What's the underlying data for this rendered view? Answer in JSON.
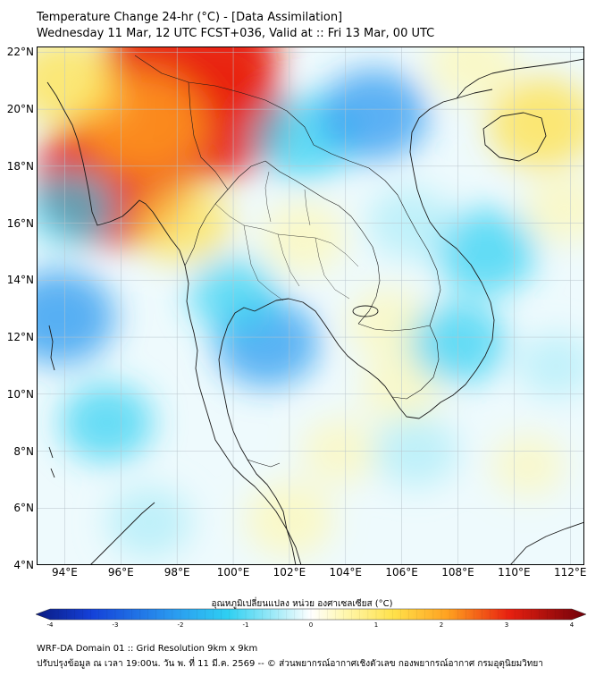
{
  "title_line1": "Temperature Change 24-hr (°C) - [Data Assimilation]",
  "title_line2": "Wednesday 11 Mar, 12 UTC FCST+036, Valid at :: Fri 13 Mar, 00 UTC",
  "lat_labels": [
    "22°N",
    "20°N",
    "18°N",
    "16°N",
    "14°N",
    "12°N",
    "10°N",
    "8°N",
    "6°N",
    "4°N"
  ],
  "lon_labels": [
    "94°E",
    "96°E",
    "98°E",
    "100°E",
    "102°E",
    "104°E",
    "106°E",
    "108°E",
    "110°E",
    "112°E"
  ],
  "map_extent": {
    "lon_min": 93.0,
    "lon_max": 112.5,
    "lat_min": 4.0,
    "lat_max": 22.2
  },
  "colorbar": {
    "title": "อุณหภูมิเปลี่ยนแปลง หน่วย องศาเซลเซียส (°C)",
    "ticks": [
      "-4",
      "-3",
      "-2",
      "-1",
      "0",
      "1",
      "2",
      "3",
      "4"
    ],
    "min": -4,
    "max": 4,
    "colors": {
      "extreme_cold": "#0a1a80",
      "deep_blue": "#1440d8",
      "mid_blue": "#2a9af0",
      "light_blue": "#2fd0f2",
      "pale_blue": "#a9ecf8",
      "neutral": "#ffffff",
      "pale_yellow": "#fff7b0",
      "yellow": "#ffe14a",
      "orange": "#ffa020",
      "red": "#e82010",
      "extreme_warm": "#70000a"
    }
  },
  "anomaly_field": [
    {
      "name": "myanmar-north-warm",
      "lon": 98.5,
      "lat": 21.8,
      "value": 3.0
    },
    {
      "name": "myanmar-north-warm-2",
      "lon": 99.2,
      "lat": 19.8,
      "value": 2.5
    },
    {
      "name": "myanmar-west-warm",
      "lon": 95.7,
      "lat": 17.5,
      "value": 2.6
    },
    {
      "name": "myanmar-central-warm",
      "lon": 96.8,
      "lat": 19.5,
      "value": 1.8
    },
    {
      "name": "bay-bengal-north-warm",
      "lon": 94.0,
      "lat": 21.0,
      "value": 1.3
    },
    {
      "name": "myanmar-south-warm",
      "lon": 98.2,
      "lat": 16.0,
      "value": 1.1
    },
    {
      "name": "gulf-tonkin-warm",
      "lon": 111.0,
      "lat": 19.5,
      "value": 1.4
    },
    {
      "name": "scs-north-warm",
      "lon": 108.5,
      "lat": 21.6,
      "value": 0.9
    },
    {
      "name": "scs-east-warm",
      "lon": 111.8,
      "lat": 16.5,
      "value": 0.7
    },
    {
      "name": "isaan-warm",
      "lon": 102.5,
      "lat": 15.5,
      "value": 0.8
    },
    {
      "name": "cambodia-warm",
      "lon": 105.5,
      "lat": 12.5,
      "value": 0.7
    },
    {
      "name": "mekong-delta-warm",
      "lon": 106.0,
      "lat": 10.2,
      "value": 0.7
    },
    {
      "name": "south-warm",
      "lon": 102.0,
      "lat": 5.6,
      "value": 0.9
    },
    {
      "name": "gulf-south-warm",
      "lon": 103.8,
      "lat": 8.0,
      "value": 0.6
    },
    {
      "name": "scs-southeast-warm",
      "lon": 110.5,
      "lat": 7.5,
      "value": 0.5
    },
    {
      "name": "laos-cold",
      "lon": 102.5,
      "lat": 19.0,
      "value": -1.2
    },
    {
      "name": "vietnam-north-cold",
      "lon": 105.0,
      "lat": 19.8,
      "value": -1.4
    },
    {
      "name": "scs-cold",
      "lon": 109.0,
      "lat": 15.0,
      "value": -1.2
    },
    {
      "name": "scs-south-cold",
      "lon": 108.0,
      "lat": 11.8,
      "value": -1.1
    },
    {
      "name": "gulf-thailand-cold",
      "lon": 101.2,
      "lat": 11.8,
      "value": -1.3
    },
    {
      "name": "andaman-cold",
      "lon": 93.8,
      "lat": 12.7,
      "value": -1.5
    },
    {
      "name": "andaman-west-cold",
      "lon": 95.5,
      "lat": 9.0,
      "value": -1.0
    },
    {
      "name": "bay-bengal-cold",
      "lon": 94.2,
      "lat": 16.5,
      "value": -0.9
    },
    {
      "name": "central-thailand-cold",
      "lon": 100.0,
      "lat": 13.5,
      "value": -0.9
    },
    {
      "name": "south-china-sea-southwest-cold",
      "lon": 106.5,
      "lat": 8.0,
      "value": -0.8
    },
    {
      "name": "vietnam-central-cold",
      "lon": 106.3,
      "lat": 16.0,
      "value": -0.8
    },
    {
      "name": "south-ocean-cold",
      "lon": 97.0,
      "lat": 5.5,
      "value": -0.8
    },
    {
      "name": "scs-far-east-cold",
      "lon": 111.5,
      "lat": 11.0,
      "value": -0.6
    }
  ],
  "footer_line1": "WRF-DA Domain 01 :: Grid Resolution 9km x 9km",
  "footer_line2": "ปรับปรุงข้อมูล ณ เวลา 19:00น. วัน พ. ที่ 11 มี.ค. 2569 -- © ส่วนพยากรณ์อากาศเชิงตัวเลข กองพยากรณ์อากาศ กรมอุตุนิยมวิทยา"
}
